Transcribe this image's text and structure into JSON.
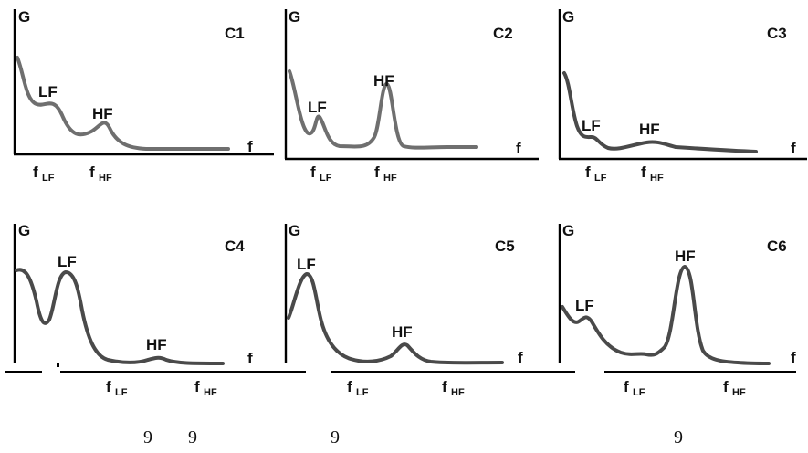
{
  "panels": [
    {
      "id": "C1",
      "y_label": "G",
      "x_label": "f",
      "peak_low": "LF",
      "peak_high": "HF",
      "f_low": "f",
      "f_low_sub": "LF",
      "f_high": "f",
      "f_high_sub": "HF"
    },
    {
      "id": "C2",
      "y_label": "G",
      "x_label": "f",
      "peak_low": "LF",
      "peak_high": "HF",
      "f_low": "f",
      "f_low_sub": "LF",
      "f_high": "f",
      "f_high_sub": "HF"
    },
    {
      "id": "C3",
      "y_label": "G",
      "x_label": "f",
      "peak_low": "LF",
      "peak_high": "HF",
      "f_low": "f",
      "f_low_sub": "LF",
      "f_high": "f",
      "f_high_sub": "HF"
    },
    {
      "id": "C4",
      "y_label": "G",
      "x_label": "f",
      "peak_low": "LF",
      "peak_high": "HF",
      "f_low": "f",
      "f_low_sub": "LF",
      "f_high": "f",
      "f_high_sub": "HF"
    },
    {
      "id": "C5",
      "y_label": "G",
      "x_label": "f",
      "peak_low": "LF",
      "peak_high": "HF",
      "f_low": "f",
      "f_low_sub": "LF",
      "f_high": "f",
      "f_high_sub": "HF"
    },
    {
      "id": "C6",
      "y_label": "G",
      "x_label": "f",
      "peak_low": "LF",
      "peak_high": "HF",
      "f_low": "f",
      "f_low_sub": "LF",
      "f_high": "f",
      "f_high_sub": "HF"
    }
  ],
  "stray_marks": [
    "9",
    "9",
    "9",
    "9"
  ]
}
